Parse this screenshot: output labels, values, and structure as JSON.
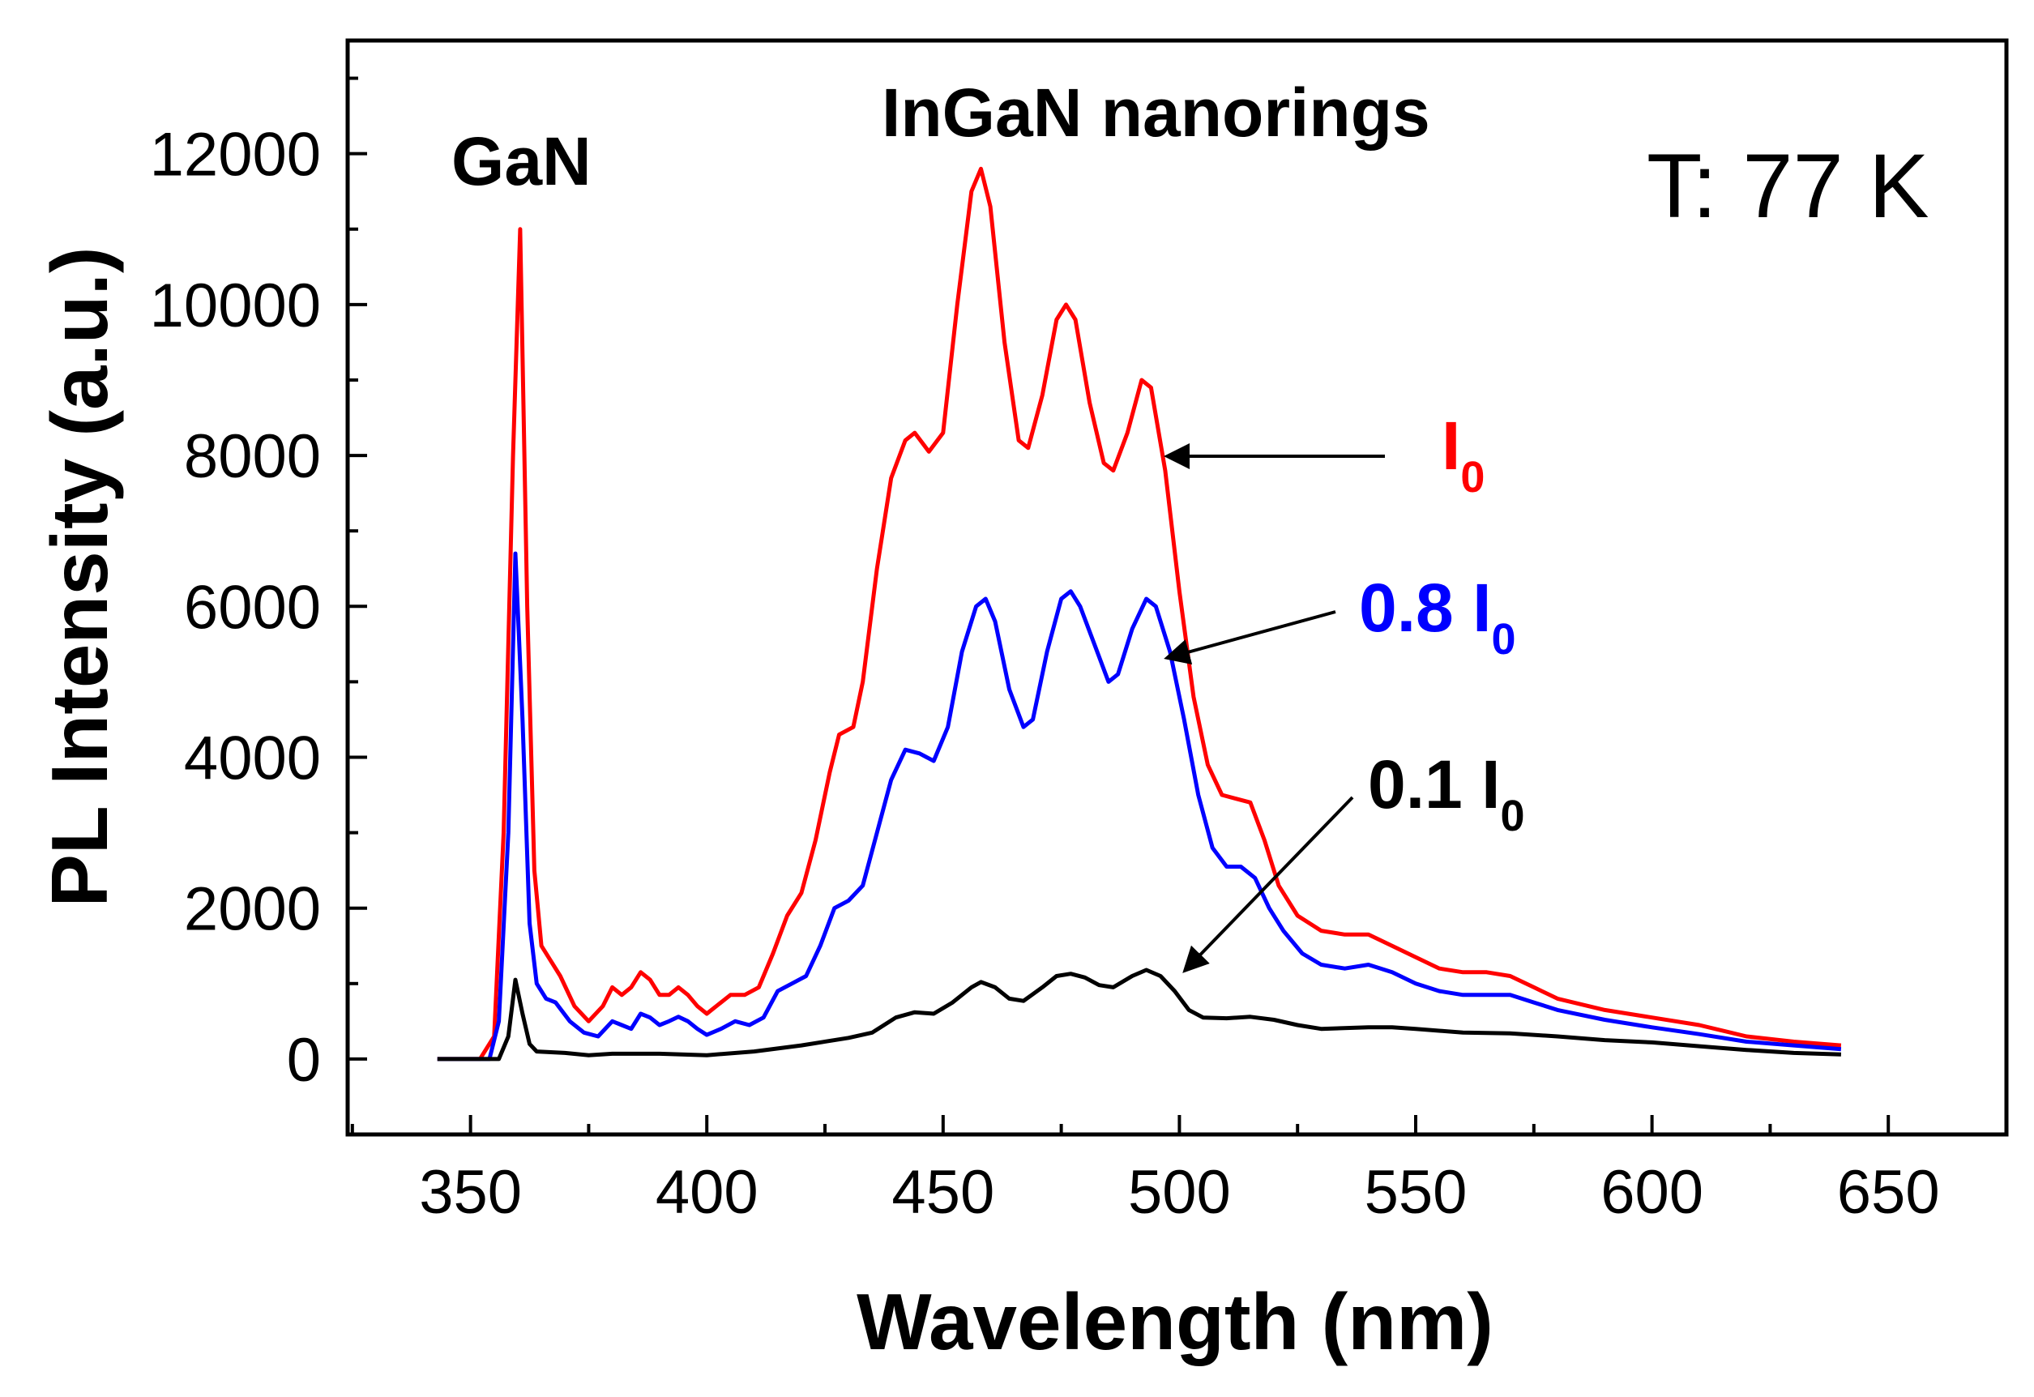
{
  "chart_data": {
    "type": "line",
    "title": "",
    "xlabel": "Wavelength (nm)",
    "ylabel": "PL Intensity (a.u.)",
    "xlim": [
      324,
      675
    ],
    "ylim": [
      -1000,
      13500
    ],
    "xticks": [
      350,
      400,
      450,
      500,
      550,
      600,
      650
    ],
    "yticks": [
      0,
      2000,
      4000,
      6000,
      8000,
      10000,
      12000
    ],
    "grid": false,
    "annotations": {
      "gan": "GaN",
      "ingan": "InGaN nanorings",
      "temperature": "T: 77 K"
    },
    "series": [
      {
        "name": "I0",
        "label_main": "I",
        "label_sub": "0",
        "color": "#ff0000",
        "points": [
          [
            343,
            0
          ],
          [
            352,
            0
          ],
          [
            355,
            300
          ],
          [
            357,
            3000
          ],
          [
            359,
            8000
          ],
          [
            360.5,
            11000
          ],
          [
            362,
            6000
          ],
          [
            363.5,
            2500
          ],
          [
            365,
            1500
          ],
          [
            367,
            1300
          ],
          [
            369,
            1100
          ],
          [
            372,
            700
          ],
          [
            375,
            500
          ],
          [
            378,
            700
          ],
          [
            380,
            950
          ],
          [
            382,
            850
          ],
          [
            384,
            950
          ],
          [
            386,
            1150
          ],
          [
            388,
            1050
          ],
          [
            390,
            850
          ],
          [
            392,
            850
          ],
          [
            394,
            950
          ],
          [
            396,
            850
          ],
          [
            398,
            700
          ],
          [
            400,
            600
          ],
          [
            402,
            700
          ],
          [
            405,
            850
          ],
          [
            408,
            850
          ],
          [
            411,
            950
          ],
          [
            414,
            1400
          ],
          [
            417,
            1900
          ],
          [
            420,
            2200
          ],
          [
            423,
            2900
          ],
          [
            426,
            3800
          ],
          [
            428,
            4300
          ],
          [
            431,
            4400
          ],
          [
            433,
            5000
          ],
          [
            436,
            6500
          ],
          [
            439,
            7700
          ],
          [
            442,
            8200
          ],
          [
            444,
            8300
          ],
          [
            447,
            8050
          ],
          [
            450,
            8300
          ],
          [
            453,
            10000
          ],
          [
            456,
            11500
          ],
          [
            458,
            11800
          ],
          [
            460,
            11300
          ],
          [
            463,
            9500
          ],
          [
            466,
            8200
          ],
          [
            468,
            8100
          ],
          [
            471,
            8800
          ],
          [
            474,
            9800
          ],
          [
            476,
            10000
          ],
          [
            478,
            9800
          ],
          [
            481,
            8700
          ],
          [
            484,
            7900
          ],
          [
            486,
            7800
          ],
          [
            489,
            8300
          ],
          [
            492,
            9000
          ],
          [
            494,
            8900
          ],
          [
            497,
            7800
          ],
          [
            500,
            6200
          ],
          [
            503,
            4800
          ],
          [
            506,
            3900
          ],
          [
            509,
            3500
          ],
          [
            512,
            3450
          ],
          [
            515,
            3400
          ],
          [
            518,
            2900
          ],
          [
            521,
            2300
          ],
          [
            525,
            1900
          ],
          [
            530,
            1700
          ],
          [
            535,
            1650
          ],
          [
            540,
            1650
          ],
          [
            545,
            1500
          ],
          [
            550,
            1350
          ],
          [
            555,
            1200
          ],
          [
            560,
            1150
          ],
          [
            565,
            1150
          ],
          [
            570,
            1100
          ],
          [
            575,
            950
          ],
          [
            580,
            800
          ],
          [
            590,
            650
          ],
          [
            600,
            550
          ],
          [
            610,
            450
          ],
          [
            620,
            300
          ],
          [
            630,
            230
          ],
          [
            640,
            180
          ]
        ]
      },
      {
        "name": "0.8 I0",
        "label_main": "0.8 I",
        "label_sub": "0",
        "color": "#0000ff",
        "points": [
          [
            343,
            0
          ],
          [
            354,
            0
          ],
          [
            356,
            500
          ],
          [
            358,
            3000
          ],
          [
            359.5,
            6700
          ],
          [
            361,
            4500
          ],
          [
            362.5,
            1800
          ],
          [
            364,
            1000
          ],
          [
            366,
            800
          ],
          [
            368,
            750
          ],
          [
            371,
            500
          ],
          [
            374,
            350
          ],
          [
            377,
            300
          ],
          [
            380,
            500
          ],
          [
            382,
            450
          ],
          [
            384,
            400
          ],
          [
            386,
            600
          ],
          [
            388,
            550
          ],
          [
            390,
            450
          ],
          [
            392,
            500
          ],
          [
            394,
            560
          ],
          [
            396,
            500
          ],
          [
            398,
            400
          ],
          [
            400,
            320
          ],
          [
            403,
            400
          ],
          [
            406,
            500
          ],
          [
            409,
            450
          ],
          [
            412,
            550
          ],
          [
            415,
            900
          ],
          [
            418,
            1000
          ],
          [
            421,
            1100
          ],
          [
            424,
            1500
          ],
          [
            427,
            2000
          ],
          [
            430,
            2100
          ],
          [
            433,
            2300
          ],
          [
            436,
            3000
          ],
          [
            439,
            3700
          ],
          [
            442,
            4100
          ],
          [
            445,
            4050
          ],
          [
            448,
            3950
          ],
          [
            451,
            4400
          ],
          [
            454,
            5400
          ],
          [
            457,
            6000
          ],
          [
            459,
            6100
          ],
          [
            461,
            5800
          ],
          [
            464,
            4900
          ],
          [
            467,
            4400
          ],
          [
            469,
            4500
          ],
          [
            472,
            5400
          ],
          [
            475,
            6100
          ],
          [
            477,
            6200
          ],
          [
            479,
            6000
          ],
          [
            482,
            5500
          ],
          [
            485,
            5000
          ],
          [
            487,
            5100
          ],
          [
            490,
            5700
          ],
          [
            493,
            6100
          ],
          [
            495,
            6000
          ],
          [
            498,
            5400
          ],
          [
            501,
            4500
          ],
          [
            504,
            3500
          ],
          [
            507,
            2800
          ],
          [
            510,
            2550
          ],
          [
            513,
            2550
          ],
          [
            516,
            2400
          ],
          [
            519,
            2000
          ],
          [
            522,
            1700
          ],
          [
            526,
            1400
          ],
          [
            530,
            1250
          ],
          [
            535,
            1200
          ],
          [
            540,
            1250
          ],
          [
            545,
            1150
          ],
          [
            550,
            1000
          ],
          [
            555,
            900
          ],
          [
            560,
            850
          ],
          [
            565,
            850
          ],
          [
            570,
            850
          ],
          [
            575,
            750
          ],
          [
            580,
            650
          ],
          [
            590,
            520
          ],
          [
            600,
            420
          ],
          [
            610,
            330
          ],
          [
            620,
            230
          ],
          [
            630,
            180
          ],
          [
            640,
            130
          ]
        ]
      },
      {
        "name": "0.1 I0",
        "label_main": "0.1 I",
        "label_sub": "0",
        "color": "#000000",
        "points": [
          [
            343,
            0
          ],
          [
            356,
            0
          ],
          [
            358,
            300
          ],
          [
            359.5,
            1050
          ],
          [
            361,
            600
          ],
          [
            362.5,
            200
          ],
          [
            364,
            100
          ],
          [
            370,
            80
          ],
          [
            375,
            50
          ],
          [
            380,
            70
          ],
          [
            390,
            70
          ],
          [
            400,
            50
          ],
          [
            410,
            100
          ],
          [
            420,
            180
          ],
          [
            430,
            280
          ],
          [
            435,
            350
          ],
          [
            440,
            550
          ],
          [
            444,
            620
          ],
          [
            448,
            600
          ],
          [
            452,
            750
          ],
          [
            456,
            950
          ],
          [
            458,
            1020
          ],
          [
            461,
            950
          ],
          [
            464,
            800
          ],
          [
            467,
            770
          ],
          [
            471,
            950
          ],
          [
            474,
            1100
          ],
          [
            477,
            1130
          ],
          [
            480,
            1080
          ],
          [
            483,
            980
          ],
          [
            486,
            950
          ],
          [
            490,
            1100
          ],
          [
            493,
            1180
          ],
          [
            496,
            1100
          ],
          [
            499,
            900
          ],
          [
            502,
            650
          ],
          [
            505,
            550
          ],
          [
            510,
            540
          ],
          [
            515,
            560
          ],
          [
            520,
            520
          ],
          [
            525,
            450
          ],
          [
            530,
            400
          ],
          [
            540,
            420
          ],
          [
            545,
            420
          ],
          [
            550,
            400
          ],
          [
            560,
            350
          ],
          [
            570,
            340
          ],
          [
            580,
            300
          ],
          [
            590,
            250
          ],
          [
            600,
            220
          ],
          [
            610,
            170
          ],
          [
            620,
            120
          ],
          [
            630,
            80
          ],
          [
            640,
            60
          ]
        ]
      }
    ]
  }
}
